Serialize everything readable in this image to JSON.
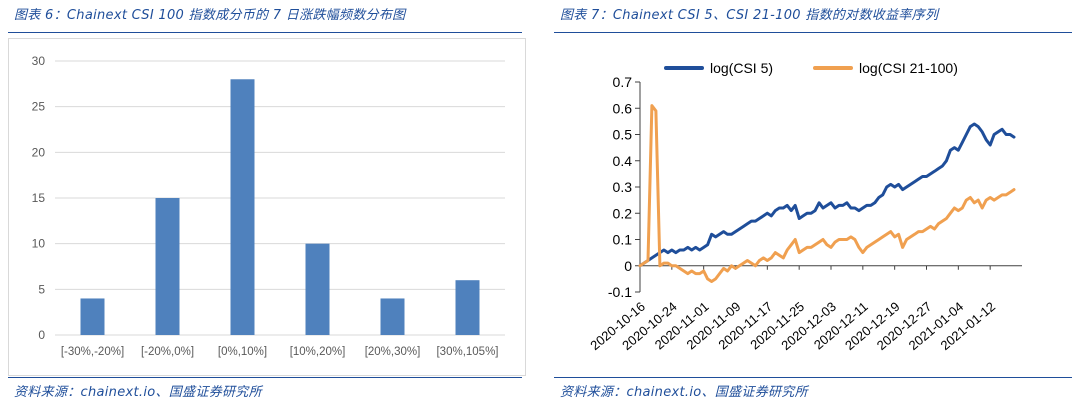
{
  "left": {
    "title": "图表 6：Chainext CSI 100 指数成分币的 7 日涨跌幅频数分布图",
    "source": "资料来源：chainext.io、国盛证券研究所"
  },
  "right": {
    "title": "图表 7：Chainext CSI 5、CSI 21-100 指数的对数收益率序列",
    "source": "资料来源：chainext.io、国盛证券研究所"
  },
  "colors": {
    "accent": "#1f4e9a",
    "bar": "#4f81bd",
    "csi5": "#1f4e9a",
    "csi21": "#f0a050"
  },
  "chart_data": [
    {
      "type": "bar",
      "categories": [
        "[-30%,-20%]",
        "[-20%,0%]",
        "[0%,10%]",
        "[10%,20%]",
        "[20%,30%]",
        "[30%,105%]"
      ],
      "values": [
        4,
        15,
        28,
        10,
        4,
        6
      ],
      "title": "",
      "xlabel": "",
      "ylabel": "",
      "ylim": [
        0,
        30
      ],
      "yticks": [
        0,
        5,
        10,
        15,
        20,
        25,
        30
      ],
      "grid": true
    },
    {
      "type": "line",
      "title": "",
      "xlabel": "",
      "ylabel": "",
      "ylim": [
        -0.1,
        0.7
      ],
      "yticks": [
        -0.1,
        0,
        0.1,
        0.2,
        0.3,
        0.4,
        0.5,
        0.6,
        0.7
      ],
      "yticklabels": [
        "-0.1",
        "0",
        "0.1",
        "0.2",
        "0.3",
        "0.4",
        "0.5",
        "0.6",
        "0.7"
      ],
      "xlim": [
        "2020-10-16",
        "2021-01-20"
      ],
      "xticks": [
        "2020-10-16",
        "2020-10-24",
        "2020-11-01",
        "2020-11-09",
        "2020-11-17",
        "2020-11-25",
        "2020-12-03",
        "2020-12-11",
        "2020-12-19",
        "2020-12-27",
        "2021-01-04",
        "2021-01-12"
      ],
      "legend": "top",
      "series": [
        {
          "name": "log(CSI 5)",
          "points": [
            [
              "2020-10-16",
              0.0
            ],
            [
              "2020-10-17",
              0.01
            ],
            [
              "2020-10-18",
              0.02
            ],
            [
              "2020-10-19",
              0.03
            ],
            [
              "2020-10-20",
              0.04
            ],
            [
              "2020-10-21",
              0.05
            ],
            [
              "2020-10-22",
              0.06
            ],
            [
              "2020-10-23",
              0.05
            ],
            [
              "2020-10-24",
              0.06
            ],
            [
              "2020-10-25",
              0.05
            ],
            [
              "2020-10-26",
              0.06
            ],
            [
              "2020-10-27",
              0.06
            ],
            [
              "2020-10-28",
              0.07
            ],
            [
              "2020-10-29",
              0.06
            ],
            [
              "2020-10-30",
              0.07
            ],
            [
              "2020-10-31",
              0.06
            ],
            [
              "2020-11-01",
              0.07
            ],
            [
              "2020-11-02",
              0.08
            ],
            [
              "2020-11-03",
              0.12
            ],
            [
              "2020-11-04",
              0.11
            ],
            [
              "2020-11-05",
              0.12
            ],
            [
              "2020-11-06",
              0.13
            ],
            [
              "2020-11-07",
              0.12
            ],
            [
              "2020-11-08",
              0.12
            ],
            [
              "2020-11-09",
              0.13
            ],
            [
              "2020-11-10",
              0.14
            ],
            [
              "2020-11-11",
              0.15
            ],
            [
              "2020-11-12",
              0.16
            ],
            [
              "2020-11-13",
              0.17
            ],
            [
              "2020-11-14",
              0.17
            ],
            [
              "2020-11-15",
              0.18
            ],
            [
              "2020-11-16",
              0.19
            ],
            [
              "2020-11-17",
              0.2
            ],
            [
              "2020-11-18",
              0.19
            ],
            [
              "2020-11-19",
              0.21
            ],
            [
              "2020-11-20",
              0.22
            ],
            [
              "2020-11-21",
              0.22
            ],
            [
              "2020-11-22",
              0.23
            ],
            [
              "2020-11-23",
              0.21
            ],
            [
              "2020-11-24",
              0.23
            ],
            [
              "2020-11-25",
              0.18
            ],
            [
              "2020-11-26",
              0.19
            ],
            [
              "2020-11-27",
              0.2
            ],
            [
              "2020-11-28",
              0.2
            ],
            [
              "2020-11-29",
              0.21
            ],
            [
              "2020-11-30",
              0.24
            ],
            [
              "2020-12-01",
              0.22
            ],
            [
              "2020-12-02",
              0.23
            ],
            [
              "2020-12-03",
              0.24
            ],
            [
              "2020-12-04",
              0.22
            ],
            [
              "2020-12-05",
              0.23
            ],
            [
              "2020-12-06",
              0.23
            ],
            [
              "2020-12-07",
              0.24
            ],
            [
              "2020-12-08",
              0.22
            ],
            [
              "2020-12-09",
              0.22
            ],
            [
              "2020-12-10",
              0.21
            ],
            [
              "2020-12-11",
              0.22
            ],
            [
              "2020-12-12",
              0.23
            ],
            [
              "2020-12-13",
              0.23
            ],
            [
              "2020-12-14",
              0.24
            ],
            [
              "2020-12-15",
              0.26
            ],
            [
              "2020-12-16",
              0.27
            ],
            [
              "2020-12-17",
              0.3
            ],
            [
              "2020-12-18",
              0.31
            ],
            [
              "2020-12-19",
              0.3
            ],
            [
              "2020-12-20",
              0.31
            ],
            [
              "2020-12-21",
              0.29
            ],
            [
              "2020-12-22",
              0.3
            ],
            [
              "2020-12-23",
              0.31
            ],
            [
              "2020-12-24",
              0.32
            ],
            [
              "2020-12-25",
              0.33
            ],
            [
              "2020-12-26",
              0.34
            ],
            [
              "2020-12-27",
              0.34
            ],
            [
              "2020-12-28",
              0.35
            ],
            [
              "2020-12-29",
              0.36
            ],
            [
              "2020-12-30",
              0.37
            ],
            [
              "2020-12-31",
              0.38
            ],
            [
              "2021-01-01",
              0.4
            ],
            [
              "2021-01-02",
              0.44
            ],
            [
              "2021-01-03",
              0.45
            ],
            [
              "2021-01-04",
              0.44
            ],
            [
              "2021-01-05",
              0.47
            ],
            [
              "2021-01-06",
              0.5
            ],
            [
              "2021-01-07",
              0.53
            ],
            [
              "2021-01-08",
              0.54
            ],
            [
              "2021-01-09",
              0.53
            ],
            [
              "2021-01-10",
              0.51
            ],
            [
              "2021-01-11",
              0.48
            ],
            [
              "2021-01-12",
              0.46
            ],
            [
              "2021-01-13",
              0.5
            ],
            [
              "2021-01-14",
              0.51
            ],
            [
              "2021-01-15",
              0.52
            ],
            [
              "2021-01-16",
              0.5
            ],
            [
              "2021-01-17",
              0.5
            ],
            [
              "2021-01-18",
              0.49
            ]
          ]
        },
        {
          "name": "log(CSI 21-100)",
          "points": [
            [
              "2020-10-16",
              0.0
            ],
            [
              "2020-10-17",
              0.01
            ],
            [
              "2020-10-18",
              0.02
            ],
            [
              "2020-10-19",
              0.61
            ],
            [
              "2020-10-20",
              0.59
            ],
            [
              "2020-10-21",
              0.0
            ],
            [
              "2020-10-22",
              0.01
            ],
            [
              "2020-10-23",
              0.01
            ],
            [
              "2020-10-24",
              0.0
            ],
            [
              "2020-10-25",
              0.0
            ],
            [
              "2020-10-26",
              -0.01
            ],
            [
              "2020-10-27",
              -0.02
            ],
            [
              "2020-10-28",
              -0.03
            ],
            [
              "2020-10-29",
              -0.02
            ],
            [
              "2020-10-30",
              -0.03
            ],
            [
              "2020-10-31",
              -0.03
            ],
            [
              "2020-11-01",
              -0.02
            ],
            [
              "2020-11-02",
              -0.05
            ],
            [
              "2020-11-03",
              -0.06
            ],
            [
              "2020-11-04",
              -0.05
            ],
            [
              "2020-11-05",
              -0.03
            ],
            [
              "2020-11-06",
              -0.01
            ],
            [
              "2020-11-07",
              -0.02
            ],
            [
              "2020-11-08",
              0.0
            ],
            [
              "2020-11-09",
              -0.01
            ],
            [
              "2020-11-10",
              0.0
            ],
            [
              "2020-11-11",
              0.01
            ],
            [
              "2020-11-12",
              0.02
            ],
            [
              "2020-11-13",
              0.01
            ],
            [
              "2020-11-14",
              0.0
            ],
            [
              "2020-11-15",
              0.02
            ],
            [
              "2020-11-16",
              0.03
            ],
            [
              "2020-11-17",
              0.02
            ],
            [
              "2020-11-18",
              0.03
            ],
            [
              "2020-11-19",
              0.05
            ],
            [
              "2020-11-20",
              0.04
            ],
            [
              "2020-11-21",
              0.03
            ],
            [
              "2020-11-22",
              0.06
            ],
            [
              "2020-11-23",
              0.08
            ],
            [
              "2020-11-24",
              0.1
            ],
            [
              "2020-11-25",
              0.05
            ],
            [
              "2020-11-26",
              0.06
            ],
            [
              "2020-11-27",
              0.07
            ],
            [
              "2020-11-28",
              0.07
            ],
            [
              "2020-11-29",
              0.08
            ],
            [
              "2020-11-30",
              0.09
            ],
            [
              "2020-12-01",
              0.1
            ],
            [
              "2020-12-02",
              0.08
            ],
            [
              "2020-12-03",
              0.07
            ],
            [
              "2020-12-04",
              0.09
            ],
            [
              "2020-12-05",
              0.1
            ],
            [
              "2020-12-06",
              0.1
            ],
            [
              "2020-12-07",
              0.1
            ],
            [
              "2020-12-08",
              0.11
            ],
            [
              "2020-12-09",
              0.1
            ],
            [
              "2020-12-10",
              0.07
            ],
            [
              "2020-12-11",
              0.05
            ],
            [
              "2020-12-12",
              0.07
            ],
            [
              "2020-12-13",
              0.08
            ],
            [
              "2020-12-14",
              0.09
            ],
            [
              "2020-12-15",
              0.1
            ],
            [
              "2020-12-16",
              0.11
            ],
            [
              "2020-12-17",
              0.12
            ],
            [
              "2020-12-18",
              0.13
            ],
            [
              "2020-12-19",
              0.11
            ],
            [
              "2020-12-20",
              0.12
            ],
            [
              "2020-12-21",
              0.07
            ],
            [
              "2020-12-22",
              0.1
            ],
            [
              "2020-12-23",
              0.11
            ],
            [
              "2020-12-24",
              0.12
            ],
            [
              "2020-12-25",
              0.13
            ],
            [
              "2020-12-26",
              0.13
            ],
            [
              "2020-12-27",
              0.14
            ],
            [
              "2020-12-28",
              0.15
            ],
            [
              "2020-12-29",
              0.14
            ],
            [
              "2020-12-30",
              0.16
            ],
            [
              "2020-12-31",
              0.17
            ],
            [
              "2021-01-01",
              0.18
            ],
            [
              "2021-01-02",
              0.2
            ],
            [
              "2021-01-03",
              0.22
            ],
            [
              "2021-01-04",
              0.21
            ],
            [
              "2021-01-05",
              0.22
            ],
            [
              "2021-01-06",
              0.25
            ],
            [
              "2021-01-07",
              0.26
            ],
            [
              "2021-01-08",
              0.24
            ],
            [
              "2021-01-09",
              0.25
            ],
            [
              "2021-01-10",
              0.22
            ],
            [
              "2021-01-11",
              0.25
            ],
            [
              "2021-01-12",
              0.26
            ],
            [
              "2021-01-13",
              0.25
            ],
            [
              "2021-01-14",
              0.26
            ],
            [
              "2021-01-15",
              0.27
            ],
            [
              "2021-01-16",
              0.27
            ],
            [
              "2021-01-17",
              0.28
            ],
            [
              "2021-01-18",
              0.29
            ]
          ]
        }
      ]
    }
  ]
}
